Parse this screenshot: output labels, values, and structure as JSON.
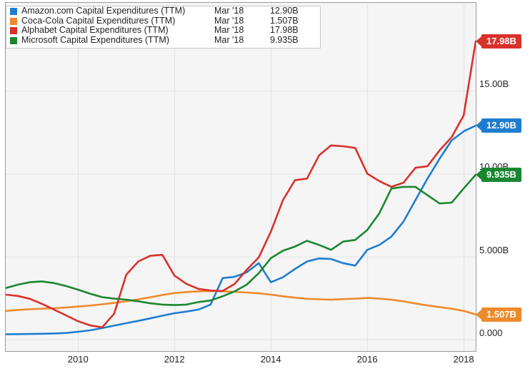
{
  "chart_data": {
    "type": "line",
    "title": "",
    "unit": "B",
    "grid": true,
    "legend_position": "top-left",
    "x_range": [
      2008.5,
      2018.25
    ],
    "y_range": [
      -0.7,
      20.3
    ],
    "x_ticks": [
      2010,
      2012,
      2014,
      2016,
      2018
    ],
    "x_tick_labels": [
      "2010",
      "2012",
      "2014",
      "2016",
      "2018"
    ],
    "y_ticks": [
      0,
      5,
      10,
      15
    ],
    "y_tick_labels": [
      "0.000",
      "5.000B",
      "10.00B",
      "15.00B"
    ],
    "x_quarters": [
      2008.5,
      2008.75,
      2009.0,
      2009.25,
      2009.5,
      2009.75,
      2010.0,
      2010.25,
      2010.5,
      2010.75,
      2011.0,
      2011.25,
      2011.5,
      2011.75,
      2012.0,
      2012.25,
      2012.5,
      2012.75,
      2013.0,
      2013.25,
      2013.5,
      2013.75,
      2014.0,
      2014.25,
      2014.5,
      2014.75,
      2015.0,
      2015.25,
      2015.5,
      2015.75,
      2016.0,
      2016.25,
      2016.5,
      2016.75,
      2017.0,
      2017.25,
      2017.5,
      2017.75,
      2018.0,
      2018.25
    ],
    "series": [
      {
        "id": "amazon",
        "name": "Amazon.com Capital Expenditures (TTM)",
        "date": "Mar '18",
        "final_label": "12.90B",
        "color": "#1e7dd1",
        "values": [
          0.31,
          0.32,
          0.33,
          0.34,
          0.36,
          0.39,
          0.46,
          0.55,
          0.68,
          0.83,
          0.98,
          1.12,
          1.27,
          1.43,
          1.58,
          1.68,
          1.8,
          2.1,
          3.7,
          3.78,
          4.05,
          4.6,
          3.45,
          3.75,
          4.25,
          4.7,
          4.88,
          4.85,
          4.6,
          4.45,
          5.4,
          5.7,
          6.2,
          7.1,
          8.4,
          9.7,
          10.9,
          12.0,
          12.55,
          12.9
        ]
      },
      {
        "id": "coca-cola",
        "name": "Coca-Cola Capital Expenditures (TTM)",
        "date": "Mar '18",
        "final_label": "1.507B",
        "color": "#ef8a2c",
        "values": [
          1.72,
          1.78,
          1.82,
          1.85,
          1.88,
          1.93,
          1.98,
          2.04,
          2.12,
          2.2,
          2.3,
          2.42,
          2.54,
          2.68,
          2.8,
          2.86,
          2.9,
          2.92,
          2.9,
          2.87,
          2.83,
          2.78,
          2.7,
          2.6,
          2.52,
          2.45,
          2.42,
          2.4,
          2.43,
          2.46,
          2.5,
          2.46,
          2.4,
          2.3,
          2.17,
          2.05,
          1.95,
          1.85,
          1.72,
          1.507
        ]
      },
      {
        "id": "alphabet",
        "name": "Alphabet Capital Expenditures (TTM)",
        "date": "Mar '18",
        "final_label": "17.98B",
        "color": "#d9312b",
        "values": [
          2.7,
          2.62,
          2.45,
          2.15,
          1.8,
          1.45,
          1.1,
          0.85,
          0.73,
          1.55,
          3.9,
          4.7,
          5.05,
          5.1,
          3.85,
          3.35,
          3.05,
          2.95,
          2.92,
          3.35,
          4.2,
          4.95,
          6.5,
          8.4,
          9.6,
          9.7,
          11.1,
          11.7,
          11.65,
          11.55,
          10.0,
          9.55,
          9.2,
          9.45,
          10.35,
          10.45,
          11.4,
          12.2,
          13.5,
          17.98
        ]
      },
      {
        "id": "microsoft",
        "name": "Microsoft Capital Expenditures (TTM)",
        "date": "Mar '18",
        "final_label": "9.935B",
        "color": "#1b8630",
        "values": [
          3.1,
          3.3,
          3.45,
          3.5,
          3.4,
          3.22,
          3.0,
          2.76,
          2.55,
          2.46,
          2.4,
          2.3,
          2.18,
          2.1,
          2.07,
          2.1,
          2.25,
          2.35,
          2.6,
          2.9,
          3.3,
          4.0,
          4.9,
          5.35,
          5.6,
          5.95,
          5.7,
          5.4,
          5.9,
          6.0,
          6.6,
          7.6,
          9.1,
          9.2,
          9.2,
          8.7,
          8.2,
          8.25,
          9.1,
          9.935
        ]
      }
    ],
    "style": {
      "plot_background": "#f5f5f5",
      "grid_color": "#e2e2e2",
      "plot_border_color": "#9a9a9a",
      "legend_border_color": "#c6c6c6",
      "text_color": "#222222"
    }
  }
}
